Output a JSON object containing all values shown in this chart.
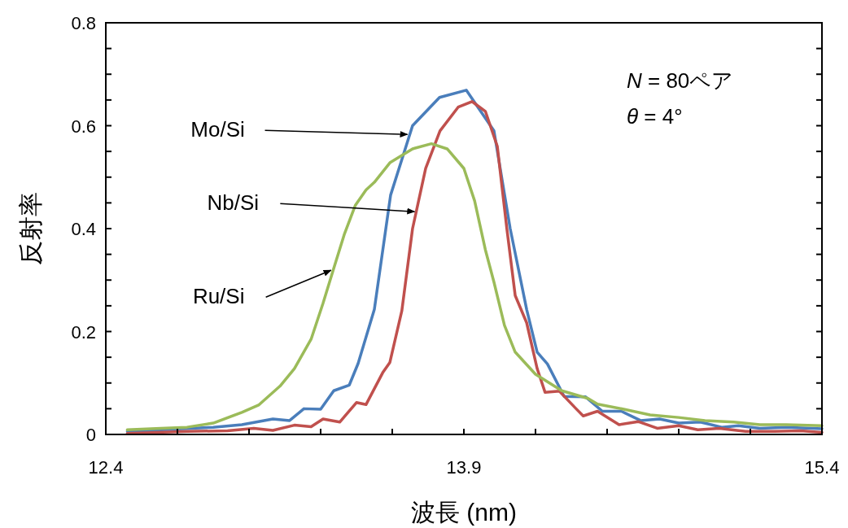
{
  "chart_data": {
    "type": "line",
    "xlabel": "波長 (nm)",
    "ylabel": "反射率",
    "xlim": [
      12.4,
      15.4
    ],
    "ylim": [
      0,
      0.8
    ],
    "xticks": [
      12.4,
      {
        "value": 12.7,
        "label": null
      },
      {
        "value": 13.0,
        "label": null
      },
      {
        "value": 13.3,
        "label": null
      },
      {
        "value": 13.6,
        "label": null
      },
      13.9,
      {
        "value": 14.2,
        "label": null
      },
      {
        "value": 14.5,
        "label": null
      },
      {
        "value": 14.8,
        "label": null
      },
      {
        "value": 15.1,
        "label": null
      },
      15.4
    ],
    "yticks": [
      0,
      {
        "value": 0.05,
        "label": null
      },
      {
        "value": 0.1,
        "label": null
      },
      {
        "value": 0.15,
        "label": null
      },
      0.2,
      {
        "value": 0.25,
        "label": null
      },
      {
        "value": 0.3,
        "label": null
      },
      {
        "value": 0.35,
        "label": null
      },
      0.4,
      {
        "value": 0.45,
        "label": null
      },
      {
        "value": 0.5,
        "label": null
      },
      {
        "value": 0.55,
        "label": null
      },
      0.6,
      {
        "value": 0.65,
        "label": null
      },
      {
        "value": 0.7,
        "label": null
      },
      {
        "value": 0.75,
        "label": null
      },
      0.8
    ],
    "grid": false,
    "marker": "none",
    "line_style": "solid",
    "series": [
      {
        "color": "#4a7ebb",
        "x": [
          12.49,
          12.85,
          12.97,
          13.1,
          13.17,
          13.23,
          13.3,
          13.355,
          13.42,
          13.457,
          13.525,
          13.593,
          13.685,
          13.798,
          13.91,
          14.026,
          14.094,
          14.163,
          14.207,
          14.25,
          14.32,
          14.41,
          14.48,
          14.56,
          14.64,
          14.72,
          14.8,
          14.89,
          14.98,
          15.05,
          15.14,
          15.25,
          15.4
        ],
        "values": [
          0.006,
          0.014,
          0.019,
          0.03,
          0.027,
          0.05,
          0.049,
          0.085,
          0.096,
          0.138,
          0.243,
          0.465,
          0.6,
          0.655,
          0.669,
          0.59,
          0.4,
          0.243,
          0.16,
          0.137,
          0.074,
          0.073,
          0.045,
          0.045,
          0.027,
          0.03,
          0.022,
          0.024,
          0.014,
          0.017,
          0.012,
          0.014,
          0.011
        ]
      },
      {
        "color": "#c0504d",
        "x": [
          12.49,
          12.74,
          12.91,
          13.02,
          13.1,
          13.19,
          13.26,
          13.31,
          13.38,
          13.45,
          13.49,
          13.56,
          13.59,
          13.64,
          13.685,
          13.74,
          13.8,
          13.876,
          13.934,
          13.99,
          14.04,
          14.08,
          14.115,
          14.163,
          14.207,
          14.24,
          14.3,
          14.37,
          14.4,
          14.46,
          14.55,
          14.63,
          14.71,
          14.8,
          14.88,
          14.97,
          15.08,
          15.2,
          15.31,
          15.4
        ],
        "values": [
          0.002,
          0.006,
          0.007,
          0.012,
          0.008,
          0.018,
          0.015,
          0.03,
          0.024,
          0.062,
          0.058,
          0.12,
          0.14,
          0.24,
          0.4,
          0.517,
          0.59,
          0.636,
          0.647,
          0.628,
          0.56,
          0.4,
          0.27,
          0.217,
          0.128,
          0.082,
          0.084,
          0.05,
          0.036,
          0.045,
          0.019,
          0.025,
          0.012,
          0.017,
          0.009,
          0.012,
          0.006,
          0.006,
          0.007,
          0.004
        ]
      },
      {
        "color": "#9bbb59",
        "x": [
          12.49,
          12.63,
          12.74,
          12.85,
          12.97,
          13.04,
          13.13,
          13.19,
          13.26,
          13.31,
          13.355,
          13.4,
          13.445,
          13.49,
          13.525,
          13.59,
          13.685,
          13.764,
          13.83,
          13.9,
          13.945,
          13.99,
          14.026,
          14.07,
          14.115,
          14.2,
          14.31,
          14.42,
          14.46,
          14.57,
          14.68,
          14.8,
          14.91,
          15.03,
          15.14,
          15.25,
          15.4
        ],
        "values": [
          0.009,
          0.012,
          0.014,
          0.022,
          0.043,
          0.057,
          0.094,
          0.128,
          0.185,
          0.255,
          0.323,
          0.39,
          0.445,
          0.475,
          0.49,
          0.528,
          0.555,
          0.565,
          0.555,
          0.517,
          0.454,
          0.359,
          0.296,
          0.212,
          0.16,
          0.117,
          0.085,
          0.07,
          0.059,
          0.049,
          0.038,
          0.033,
          0.027,
          0.024,
          0.019,
          0.019,
          0.017
        ]
      }
    ],
    "annotations": [
      {
        "text": "Mo/Si",
        "x": 13.67,
        "y": 0.583
      },
      {
        "text": "Nb/Si",
        "x": 13.7,
        "y": 0.433
      },
      {
        "text": "Ru/Si",
        "x": 13.35,
        "y": 0.319
      },
      "N = 80ペア",
      "θ = 4°"
    ]
  }
}
